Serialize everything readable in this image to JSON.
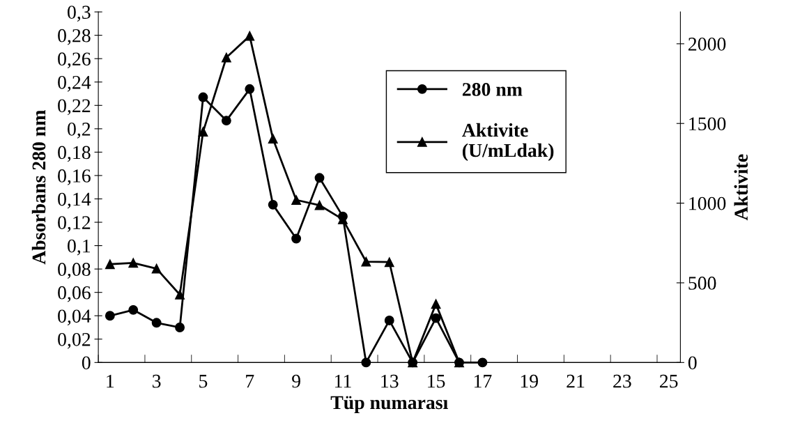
{
  "chart_data": {
    "type": "line",
    "xlabel": "Tüp numarası",
    "ylabel": "Absorbans 280 nm",
    "y2label": "Aktivite",
    "categories": [
      "1",
      null,
      "3",
      null,
      "5",
      null,
      "7",
      null,
      "9",
      null,
      "11",
      null,
      "13",
      null,
      "15",
      null,
      "17",
      null,
      "19",
      null,
      "21",
      null,
      "23",
      null,
      "25"
    ],
    "series": [
      {
        "name": "280 nm",
        "color": "#000000",
        "marker": "circle",
        "values": [
          0.04,
          0.045,
          0.034,
          0.03,
          0.227,
          0.207,
          0.234,
          0.135,
          0.106,
          0.158,
          0.125,
          0,
          0.036,
          0,
          0.038,
          0,
          0,
          null,
          null,
          null,
          null,
          null,
          null,
          null,
          null
        ]
      },
      {
        "name": "Aktivite\n(U/mLdak)",
        "color": "#000000",
        "marker": "triangle",
        "axis": "y2",
        "values": [
          617,
          625,
          589,
          426,
          1448,
          1914,
          2049,
          1404,
          1020,
          987,
          898,
          633,
          630,
          0,
          367,
          0,
          null,
          null,
          null,
          null,
          null,
          null,
          null,
          null,
          null
        ]
      }
    ],
    "ylim": [
      0,
      0.3
    ],
    "yticks": [
      0,
      {
        "value": 0.02,
        "label": "0,02"
      },
      {
        "value": 0.04,
        "label": "0,04"
      },
      {
        "value": 0.06,
        "label": "0,06"
      },
      {
        "value": 0.08,
        "label": "0,08"
      },
      {
        "value": 0.1,
        "label": "0,1"
      },
      {
        "value": 0.12,
        "label": "0,12"
      },
      {
        "value": 0.14,
        "label": "0,14"
      },
      {
        "value": 0.16,
        "label": "0,16"
      },
      {
        "value": 0.18,
        "label": "0,18"
      },
      {
        "value": 0.2,
        "label": "0,2"
      },
      {
        "value": 0.22,
        "label": "0,22"
      },
      {
        "value": 0.24,
        "label": "0,24"
      },
      {
        "value": 0.26,
        "label": "0,26"
      },
      {
        "value": 0.28,
        "label": "0,28"
      },
      {
        "value": 0.3,
        "label": "0,3"
      }
    ],
    "y2lim": [
      0,
      2200
    ],
    "y2ticks": [
      0,
      500,
      1000,
      1500,
      2000
    ],
    "grid": false,
    "legend": "top right",
    "line_style": "solid"
  }
}
